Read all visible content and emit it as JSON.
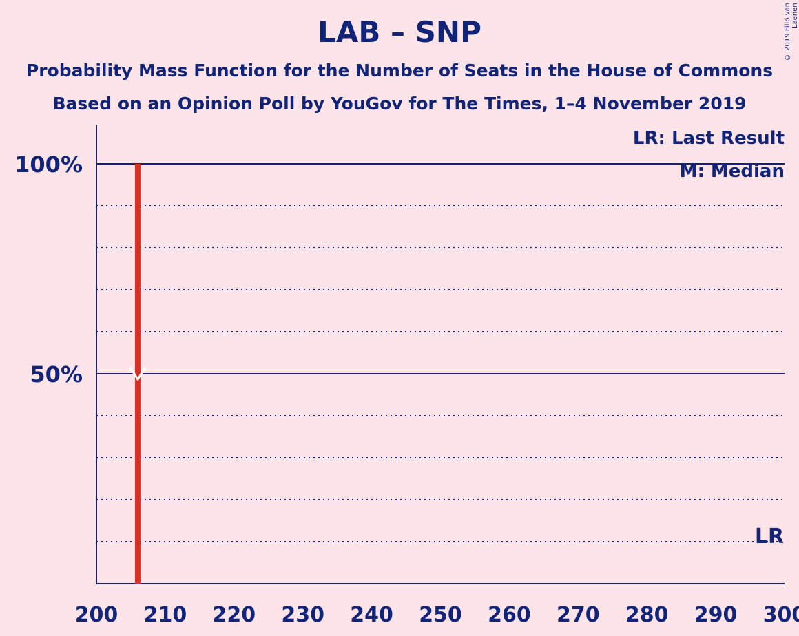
{
  "chart_data": {
    "type": "bar",
    "title": "LAB – SNP",
    "subtitle": "Probability Mass Function for the Number of Seats in the House of Commons",
    "subtitle2": "Based on an Opinion Poll by YouGov for The Times, 1–4 November 2019",
    "copyright": "© 2019 Filip van Laenen",
    "legend": [
      "LR: Last Result",
      "M: Median"
    ],
    "last_result_label": "LR",
    "x": [
      206
    ],
    "values": [
      1.0
    ],
    "median": 206,
    "last_result": 297,
    "xlim": [
      200,
      300
    ],
    "ylim": [
      0,
      1
    ],
    "xticks": [
      200,
      210,
      220,
      230,
      240,
      250,
      260,
      270,
      280,
      290,
      300
    ],
    "yticks": [
      {
        "value": 0.5,
        "label": "50%"
      },
      {
        "value": 1.0,
        "label": "100%"
      }
    ],
    "grid": true,
    "legend_position": "top-right"
  },
  "colors": {
    "background": "#fde4e8",
    "axis": "#10247a",
    "bar": "#d93025",
    "median_marker": "#ffffff"
  }
}
